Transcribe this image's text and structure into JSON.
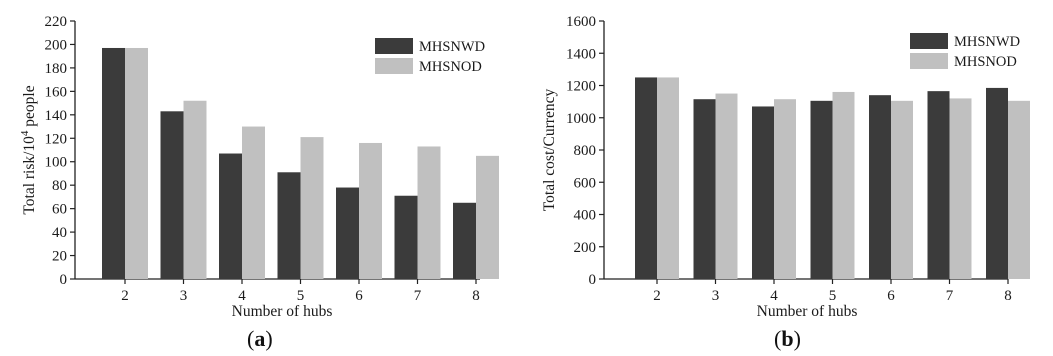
{
  "colors": {
    "series_1": "#3b3b3b",
    "series_2": "#c0c0c0",
    "axis": "#222222"
  },
  "chart_data": [
    {
      "type": "bar",
      "panel_label": "a",
      "categories": [
        "2",
        "3",
        "4",
        "5",
        "6",
        "7",
        "8"
      ],
      "series": [
        {
          "name": "MHSNWD",
          "values": [
            197,
            143,
            107,
            91,
            78,
            71,
            65
          ]
        },
        {
          "name": "MHSNOD",
          "values": [
            197,
            152,
            130,
            121,
            116,
            113,
            105
          ]
        }
      ],
      "xlabel": "Number of hubs",
      "ylabel_main": "Total risk/10",
      "ylabel_sup": "4",
      "ylabel_tail": " people",
      "ylim": [
        0,
        220
      ],
      "yticks": [
        0,
        20,
        40,
        60,
        80,
        100,
        120,
        140,
        160,
        180,
        200,
        220
      ],
      "legend_position": "top-right",
      "grid": false
    },
    {
      "type": "bar",
      "panel_label": "b",
      "categories": [
        "2",
        "3",
        "4",
        "5",
        "6",
        "7",
        "8"
      ],
      "series": [
        {
          "name": "MHSNWD",
          "values": [
            1250,
            1115,
            1070,
            1105,
            1140,
            1165,
            1185
          ]
        },
        {
          "name": "MHSNOD",
          "values": [
            1250,
            1150,
            1115,
            1160,
            1105,
            1120,
            1105
          ]
        }
      ],
      "xlabel": "Number of hubs",
      "ylabel_main": "Total cost/Currency",
      "ylabel_sup": "",
      "ylabel_tail": "",
      "ylim": [
        0,
        1600
      ],
      "yticks": [
        0,
        200,
        400,
        600,
        800,
        1000,
        1200,
        1400,
        1600
      ],
      "legend_position": "top-right",
      "grid": false
    }
  ]
}
